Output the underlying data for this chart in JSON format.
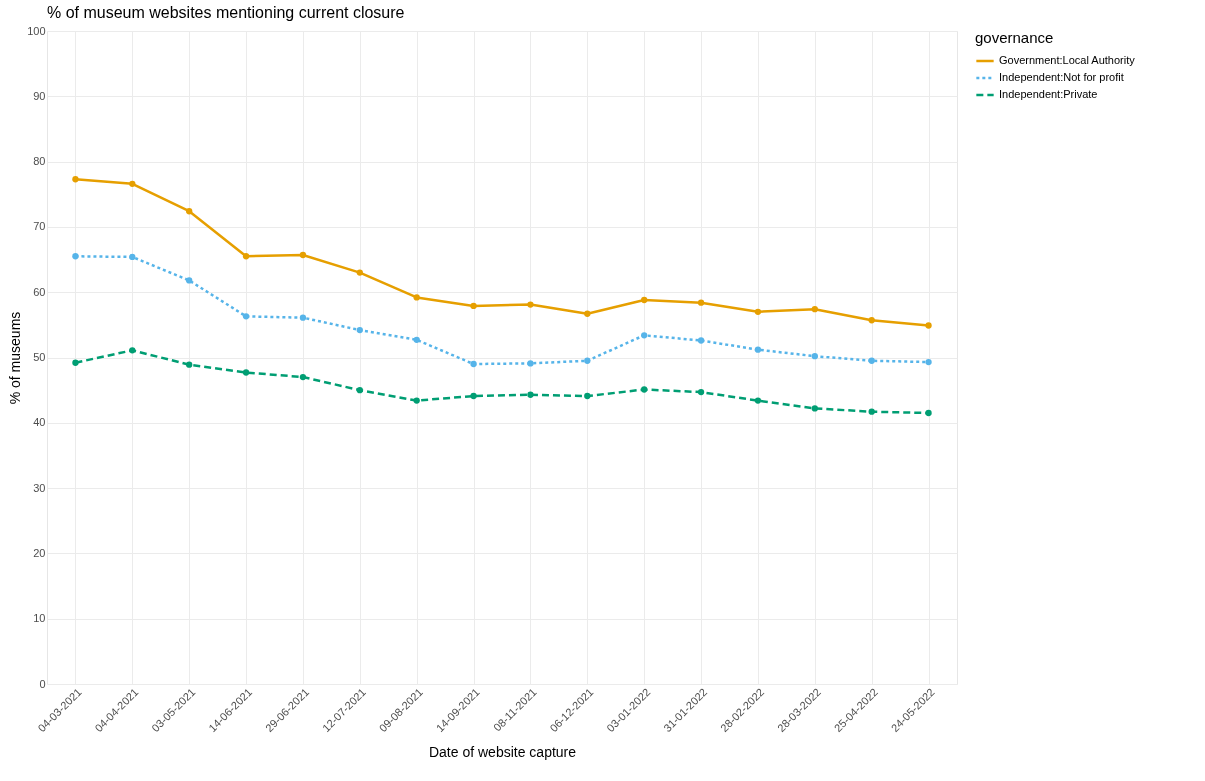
{
  "chart_data": {
    "type": "line",
    "title": "% of museum websites mentioning current closure",
    "xlabel": "Date of website capture",
    "ylabel": "% of museums",
    "legend_title": "governance",
    "categories": [
      "04-03-2021",
      "04-04-2021",
      "03-05-2021",
      "14-06-2021",
      "29-06-2021",
      "12-07-2021",
      "09-08-2021",
      "14-09-2021",
      "08-11-2021",
      "06-12-2021",
      "03-01-2022",
      "31-01-2022",
      "28-02-2022",
      "28-03-2022",
      "25-04-2022",
      "24-05-2022"
    ],
    "series": [
      {
        "name": "Government:Local Authority",
        "color": "#e69f00",
        "line_style": "solid",
        "values": [
          77.3,
          76.6,
          72.4,
          65.5,
          65.7,
          63.0,
          59.2,
          57.9,
          58.1,
          56.7,
          58.8,
          58.4,
          57.0,
          57.4,
          55.7,
          54.9
        ]
      },
      {
        "name": "Independent:Not for profit",
        "color": "#56b4e9",
        "line_style": "dotted",
        "values": [
          65.5,
          65.4,
          61.8,
          56.3,
          56.1,
          54.2,
          52.7,
          49.0,
          49.1,
          49.5,
          53.4,
          52.6,
          51.2,
          50.2,
          49.5,
          49.3
        ]
      },
      {
        "name": "Independent:Private",
        "color": "#009e73",
        "line_style": "dashed",
        "values": [
          49.2,
          51.1,
          48.9,
          47.7,
          47.0,
          45.0,
          43.4,
          44.1,
          44.3,
          44.1,
          45.1,
          44.7,
          43.4,
          42.2,
          41.7,
          41.5
        ]
      }
    ],
    "ylim": [
      0,
      100
    ],
    "yticks": [
      0,
      10,
      20,
      30,
      40,
      50,
      60,
      70,
      80,
      90,
      100
    ],
    "grid": true,
    "legend": "right",
    "marker": "circle"
  }
}
